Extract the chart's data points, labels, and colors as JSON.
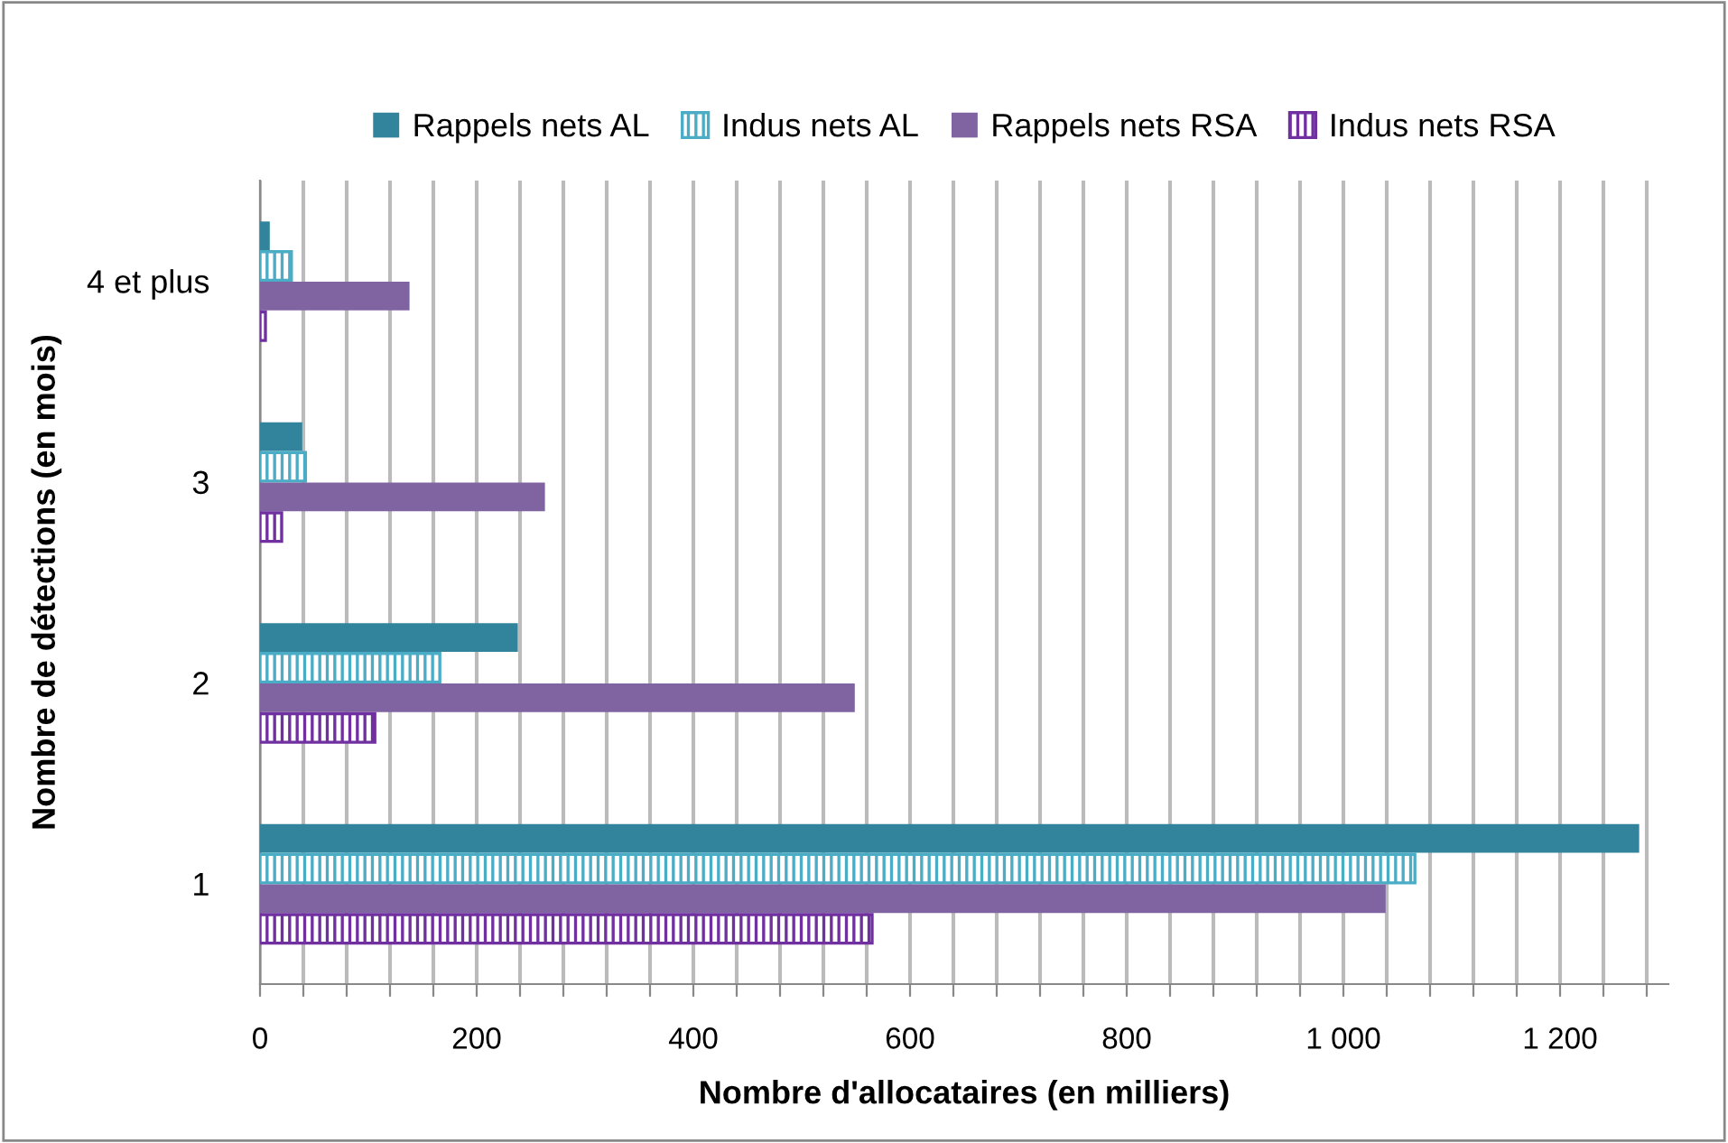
{
  "chart_data": {
    "type": "bar",
    "orientation": "horizontal",
    "categories": [
      "4 et plus",
      "3",
      "2",
      "1"
    ],
    "series": [
      {
        "name": "Rappels nets AL",
        "color": "#31849b",
        "values": [
          9,
          39,
          238,
          1273
        ]
      },
      {
        "name": "Indus nets AL",
        "color": "#4bacc6",
        "values": [
          29,
          42,
          166,
          1066
        ]
      },
      {
        "name": "Rappels nets RSA",
        "color": "#8064a2",
        "values": [
          138,
          263,
          549,
          1039
        ]
      },
      {
        "name": "Indus nets RSA",
        "color": "#7030a0",
        "values": [
          5,
          20,
          106,
          565
        ]
      }
    ],
    "xlabel": "Nombre d'allocataires (en milliers)",
    "ylabel": "Nombre de détections (en mois)",
    "xlim": [
      0,
      1300
    ],
    "xticks": [
      0,
      {
        "value": 40,
        "label": null
      },
      {
        "value": 80,
        "label": null
      },
      {
        "value": 120,
        "label": null
      },
      {
        "value": 160,
        "label": null
      },
      200,
      {
        "value": 240,
        "label": null
      },
      {
        "value": 280,
        "label": null
      },
      {
        "value": 320,
        "label": null
      },
      {
        "value": 360,
        "label": null
      },
      400,
      {
        "value": 440,
        "label": null
      },
      {
        "value": 480,
        "label": null
      },
      {
        "value": 520,
        "label": null
      },
      {
        "value": 560,
        "label": null
      },
      600,
      {
        "value": 640,
        "label": null
      },
      {
        "value": 680,
        "label": null
      },
      {
        "value": 720,
        "label": null
      },
      {
        "value": 760,
        "label": null
      },
      800,
      {
        "value": 840,
        "label": null
      },
      {
        "value": 880,
        "label": null
      },
      {
        "value": 920,
        "label": null
      },
      {
        "value": 960,
        "label": null
      },
      {
        "value": 1000,
        "label": "1 000"
      },
      {
        "value": 1040,
        "label": null
      },
      {
        "value": 1080,
        "label": null
      },
      {
        "value": 1120,
        "label": null
      },
      {
        "value": 1160,
        "label": null
      },
      {
        "value": 1200,
        "label": "1 200"
      },
      {
        "value": 1240,
        "label": null
      },
      {
        "value": 1280,
        "label": null
      }
    ],
    "grid": "x",
    "legend": "top"
  }
}
